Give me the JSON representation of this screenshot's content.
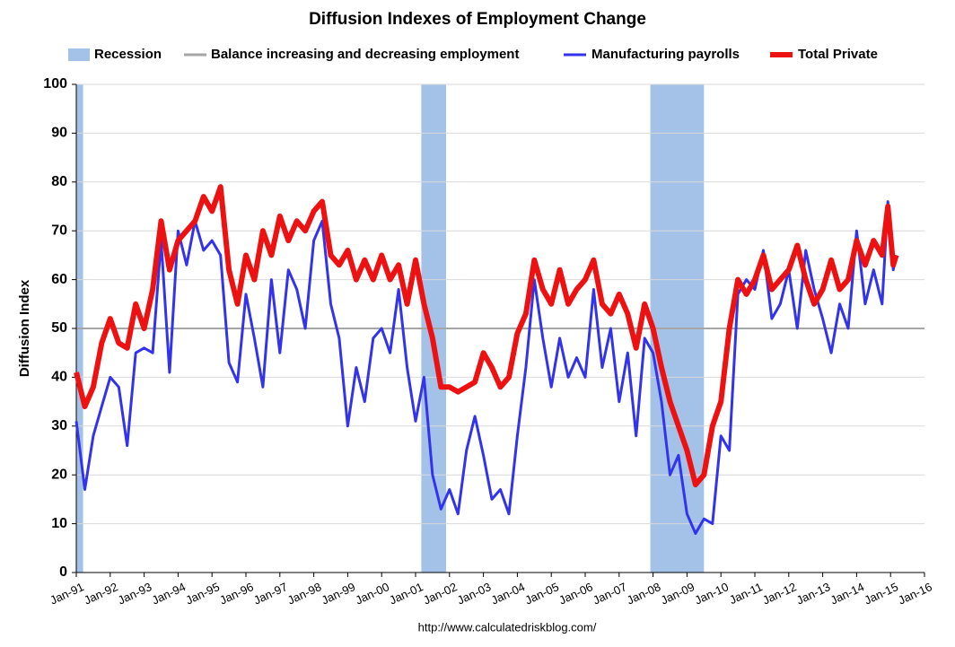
{
  "chart_data": {
    "type": "line",
    "title": "Diffusion Indexes of Employment Change",
    "ylabel": "Diffusion Index",
    "source": "http://www.calculatedriskblog.com/",
    "xlim": [
      1991,
      2016
    ],
    "xticks": [
      {
        "value": 1991,
        "label": "Jan-91"
      },
      {
        "value": 1992,
        "label": "Jan-92"
      },
      {
        "value": 1993,
        "label": "Jan-93"
      },
      {
        "value": 1994,
        "label": "Jan-94"
      },
      {
        "value": 1995,
        "label": "Jan-95"
      },
      {
        "value": 1996,
        "label": "Jan-96"
      },
      {
        "value": 1997,
        "label": "Jan-97"
      },
      {
        "value": 1998,
        "label": "Jan-98"
      },
      {
        "value": 1999,
        "label": "Jan-99"
      },
      {
        "value": 2000,
        "label": "Jan-00"
      },
      {
        "value": 2001,
        "label": "Jan-01"
      },
      {
        "value": 2002,
        "label": "Jan-02"
      },
      {
        "value": 2003,
        "label": "Jan-03"
      },
      {
        "value": 2004,
        "label": "Jan-04"
      },
      {
        "value": 2005,
        "label": "Jan-05"
      },
      {
        "value": 2006,
        "label": "Jan-06"
      },
      {
        "value": 2007,
        "label": "Jan-07"
      },
      {
        "value": 2008,
        "label": "Jan-08"
      },
      {
        "value": 2009,
        "label": "Jan-09"
      },
      {
        "value": 2010,
        "label": "Jan-10"
      },
      {
        "value": 2011,
        "label": "Jan-11"
      },
      {
        "value": 2012,
        "label": "Jan-12"
      },
      {
        "value": 2013,
        "label": "Jan-13"
      },
      {
        "value": 2014,
        "label": "Jan-14"
      },
      {
        "value": 2015,
        "label": "Jan-15"
      },
      {
        "value": 2016,
        "label": "Jan-16"
      }
    ],
    "ylim": [
      0,
      100
    ],
    "yticks": [
      0,
      10,
      20,
      30,
      40,
      50,
      60,
      70,
      80,
      90,
      100
    ],
    "grid": true,
    "legend": "top",
    "recession_name": "Recession",
    "recession_color": "#a4c2e8",
    "recessions": [
      [
        1991,
        1991.2
      ],
      [
        2001.17,
        2001.9
      ],
      [
        2007.92,
        2009.5
      ]
    ],
    "reference_line": {
      "name": "Balance increasing and decreasing employment",
      "value": 50,
      "color": "#a6a6a6"
    },
    "x": [
      1991,
      1991.25,
      1991.5,
      1991.75,
      1992,
      1992.25,
      1992.5,
      1992.75,
      1993,
      1993.25,
      1993.5,
      1993.75,
      1994,
      1994.25,
      1994.5,
      1994.75,
      1995,
      1995.25,
      1995.5,
      1995.75,
      1996,
      1996.25,
      1996.5,
      1996.75,
      1997,
      1997.25,
      1997.5,
      1997.75,
      1998,
      1998.25,
      1998.5,
      1998.75,
      1999,
      1999.25,
      1999.5,
      1999.75,
      2000,
      2000.25,
      2000.5,
      2000.75,
      2001,
      2001.25,
      2001.5,
      2001.75,
      2002,
      2002.25,
      2002.5,
      2002.75,
      2003,
      2003.25,
      2003.5,
      2003.75,
      2004,
      2004.25,
      2004.5,
      2004.75,
      2005,
      2005.25,
      2005.5,
      2005.75,
      2006,
      2006.25,
      2006.5,
      2006.75,
      2007,
      2007.25,
      2007.5,
      2007.75,
      2008,
      2008.25,
      2008.5,
      2008.75,
      2009,
      2009.25,
      2009.5,
      2009.75,
      2010,
      2010.25,
      2010.5,
      2010.75,
      2011,
      2011.25,
      2011.5,
      2011.75,
      2012,
      2012.25,
      2012.5,
      2012.75,
      2013,
      2013.25,
      2013.5,
      2013.75,
      2014,
      2014.25,
      2014.5,
      2014.75,
      2014.92,
      2015.08,
      2015.17
    ],
    "series": [
      {
        "name": "Manufacturing payrolls",
        "color": "#3333ee",
        "width": 3,
        "values": [
          31,
          17,
          28,
          34,
          40,
          38,
          26,
          45,
          46,
          45,
          68,
          41,
          70,
          63,
          72,
          66,
          68,
          65,
          43,
          39,
          57,
          48,
          38,
          60,
          45,
          62,
          58,
          50,
          68,
          72,
          55,
          48,
          30,
          42,
          35,
          48,
          50,
          45,
          58,
          42,
          31,
          40,
          20,
          13,
          17,
          12,
          25,
          32,
          24,
          15,
          17,
          12,
          28,
          42,
          60,
          48,
          38,
          48,
          40,
          44,
          40,
          58,
          42,
          50,
          35,
          45,
          28,
          48,
          45,
          35,
          20,
          24,
          12,
          8,
          11,
          10,
          28,
          25,
          57,
          60,
          58,
          66,
          52,
          55,
          62,
          50,
          66,
          58,
          52,
          45,
          55,
          50,
          70,
          55,
          62,
          55,
          76,
          62,
          65
        ]
      },
      {
        "name": "Total Private",
        "color": "#ee1111",
        "width": 6,
        "values": [
          41,
          34,
          38,
          47,
          52,
          47,
          46,
          55,
          50,
          58,
          72,
          62,
          68,
          70,
          72,
          77,
          74,
          79,
          62,
          55,
          65,
          60,
          70,
          65,
          73,
          68,
          72,
          70,
          74,
          76,
          65,
          63,
          66,
          60,
          64,
          60,
          65,
          60,
          63,
          55,
          64,
          55,
          48,
          38,
          38,
          37,
          38,
          39,
          45,
          42,
          38,
          40,
          49,
          53,
          64,
          58,
          55,
          62,
          55,
          58,
          60,
          64,
          55,
          53,
          57,
          53,
          46,
          55,
          50,
          42,
          35,
          30,
          25,
          18,
          20,
          30,
          35,
          50,
          60,
          57,
          60,
          65,
          58,
          60,
          62,
          67,
          60,
          55,
          58,
          64,
          58,
          60,
          68,
          63,
          68,
          65,
          75,
          63,
          65
        ]
      }
    ]
  }
}
